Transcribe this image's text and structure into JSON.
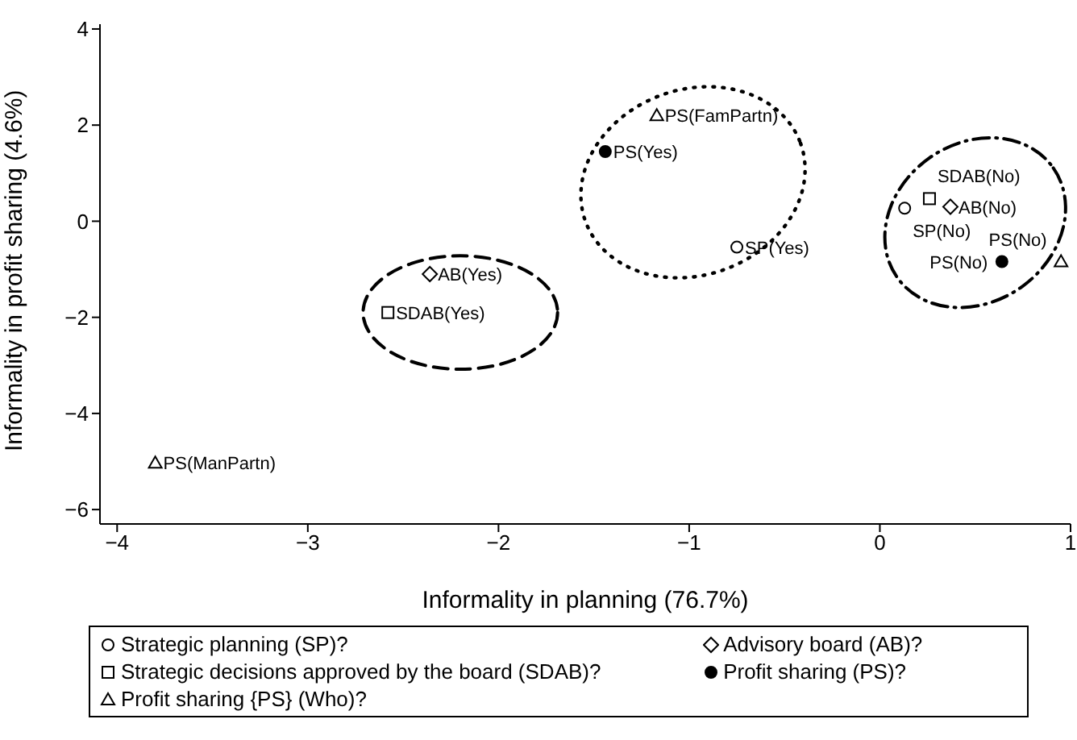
{
  "chart_data": {
    "type": "scatter",
    "xlabel": "Informality in planning (76.7%)",
    "ylabel": "Informality in profit sharing (4.6%)",
    "xlim": [
      -4.09,
      1
    ],
    "xticks": [
      -4,
      -3,
      -2,
      -1,
      0,
      1
    ],
    "ylim": [
      -6.3,
      4.1
    ],
    "yticks": [
      4,
      2,
      0,
      -2,
      -4,
      -6
    ],
    "grid": false,
    "legend": "bottom",
    "series": [
      {
        "name": "Strategic planning (SP)?",
        "color": "#000000",
        "marker": "circle",
        "x": [
          -0.75,
          0.13
        ],
        "values": [
          -0.54,
          0.27
        ],
        "value_labels": [
          "SP(Yes)",
          "SP(No)"
        ]
      },
      {
        "name": "Advisory board (AB)?",
        "color": "#000000",
        "marker": "diamond",
        "x": [
          -2.36,
          0.37
        ],
        "values": [
          -1.1,
          0.3
        ],
        "value_labels": [
          "AB(Yes)",
          "AB(No)"
        ]
      },
      {
        "name": "Strategic decisions approved by the board (SDAB)?",
        "color": "#000000",
        "marker": "square",
        "x": [
          -2.58,
          0.26
        ],
        "values": [
          -1.9,
          0.47
        ],
        "value_labels": [
          "SDAB(Yes)",
          "SDAB(No)"
        ]
      },
      {
        "name": "Profit sharing (PS)?",
        "color": "#000000",
        "marker": "circle",
        "x": [
          -1.44,
          0.64
        ],
        "values": [
          1.45,
          -0.84
        ],
        "value_labels": [
          "PS(Yes)",
          "PS(No)"
        ]
      },
      {
        "name": "Profit sharing {PS} (Who)?",
        "color": "#000000",
        "marker": "triangle",
        "x": [
          -1.17,
          -3.8,
          0.95
        ],
        "values": [
          2.2,
          -5.03,
          -0.84
        ],
        "value_labels": [
          "PS(FamPartn)",
          "PS(ManPartn)",
          "PS(No)"
        ]
      }
    ]
  }
}
